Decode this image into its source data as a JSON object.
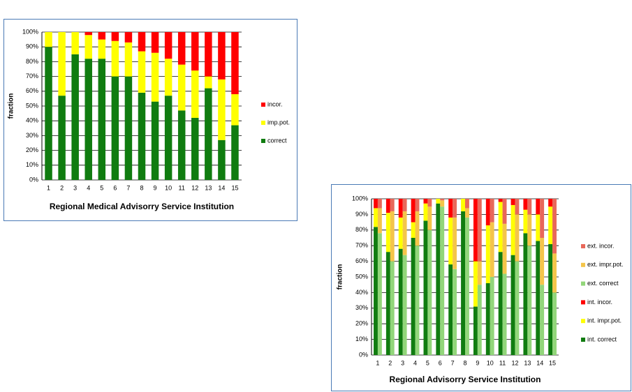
{
  "chart_data": [
    {
      "type": "bar",
      "stacked": true,
      "xlabel": "Regional Medical Advisorry Service Institution",
      "ylabel": "fraction",
      "categories": [
        "1",
        "2",
        "3",
        "4",
        "5",
        "6",
        "7",
        "8",
        "9",
        "10",
        "11",
        "12",
        "13",
        "14",
        "15"
      ],
      "series": [
        {
          "name": "correct",
          "color": "#107c10",
          "values": [
            90,
            57,
            85,
            82,
            82,
            70,
            70,
            59,
            53,
            57,
            47,
            42,
            62,
            27,
            37
          ]
        },
        {
          "name": "imp.pot.",
          "color": "#ffff00",
          "values": [
            10,
            43,
            15,
            16,
            13,
            24,
            23,
            28,
            33,
            25,
            31,
            32,
            8,
            41,
            21
          ]
        },
        {
          "name": "incor.",
          "color": "#ff0000",
          "values": [
            0,
            0,
            0,
            2,
            5,
            6,
            7,
            13,
            14,
            18,
            22,
            26,
            30,
            32,
            42
          ]
        }
      ],
      "ylim": [
        0,
        100
      ],
      "yticks": [
        {
          "value": 0,
          "label": "0%"
        },
        {
          "value": 10,
          "label": "10%"
        },
        {
          "value": 20,
          "label": "20%"
        },
        {
          "value": 30,
          "label": "30%"
        },
        {
          "value": 40,
          "label": "40%"
        },
        {
          "value": 50,
          "label": "50%"
        },
        {
          "value": 60,
          "label": "60%"
        },
        {
          "value": 70,
          "label": "70%"
        },
        {
          "value": 80,
          "label": "80%"
        },
        {
          "value": 90,
          "label": "90%"
        },
        {
          "value": 100,
          "label": "100%"
        }
      ],
      "grid": true
    },
    {
      "type": "bar",
      "stacked": true,
      "xlabel": "Regional Advisorry Service Institution",
      "ylabel": "fraction",
      "categories": [
        "1",
        "2",
        "3",
        "4",
        "5",
        "6",
        "7",
        "8",
        "9",
        "10",
        "11",
        "12",
        "13",
        "14",
        "15"
      ],
      "series": [
        {
          "name": "int. correct",
          "color": "#107c10",
          "stack": 0,
          "values": [
            82,
            66,
            68,
            75,
            86,
            97,
            58,
            92,
            31,
            46,
            66,
            64,
            78,
            73,
            71
          ]
        },
        {
          "name": "int. impr.pot.",
          "color": "#ffff00",
          "stack": 0,
          "values": [
            12,
            25,
            20,
            10,
            11,
            3,
            30,
            8,
            29,
            37,
            32,
            32,
            15,
            17,
            24
          ]
        },
        {
          "name": "int. incor.",
          "color": "#ff0000",
          "stack": 0,
          "values": [
            6,
            9,
            12,
            15,
            3,
            0,
            12,
            0,
            40,
            17,
            2,
            4,
            7,
            10,
            5
          ]
        },
        {
          "name": "ext. correct",
          "color": "#92d67a",
          "stack": 1,
          "values": [
            78,
            60,
            64,
            70,
            80,
            95,
            55,
            88,
            45,
            50,
            52,
            60,
            70,
            45,
            40
          ]
        },
        {
          "name": "ext. impr.pot.",
          "color": "#f4c54a",
          "stack": 1,
          "values": [
            16,
            32,
            28,
            22,
            15,
            4,
            33,
            6,
            15,
            35,
            32,
            30,
            20,
            30,
            25
          ]
        },
        {
          "name": "ext. incor.",
          "color": "#e8685a",
          "stack": 1,
          "values": [
            6,
            8,
            8,
            8,
            5,
            1,
            12,
            6,
            40,
            15,
            16,
            10,
            10,
            25,
            35
          ]
        }
      ],
      "ylim": [
        0,
        100
      ],
      "yticks": [
        {
          "value": 0,
          "label": "0%"
        },
        {
          "value": 10,
          "label": "10%"
        },
        {
          "value": 20,
          "label": "20%"
        },
        {
          "value": 30,
          "label": "30%"
        },
        {
          "value": 40,
          "label": "40%"
        },
        {
          "value": 50,
          "label": "50%"
        },
        {
          "value": 60,
          "label": "60%"
        },
        {
          "value": 70,
          "label": "70%"
        },
        {
          "value": 80,
          "label": "80%"
        },
        {
          "value": 90,
          "label": "90%"
        },
        {
          "value": 100,
          "label": "100%"
        }
      ],
      "grid": true
    }
  ]
}
